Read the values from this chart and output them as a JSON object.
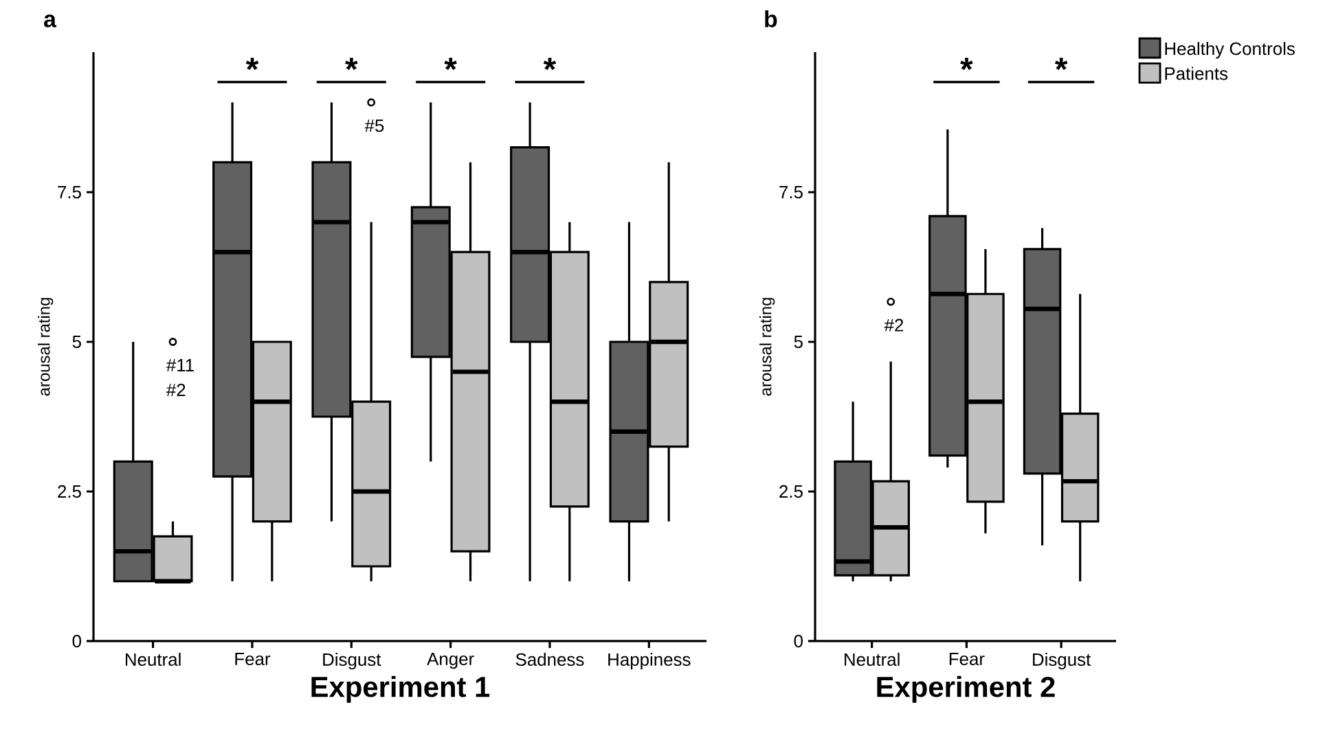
{
  "chart_data": [
    {
      "type": "box",
      "title": "a",
      "xlabel": "Experiment 1",
      "ylabel": "arousal rating",
      "categories": [
        "Neutral",
        "Fear",
        "Disgust",
        "Anger",
        "Sadness",
        "Happiness"
      ],
      "ylim": [
        0,
        9.84
      ],
      "yticks": [
        0,
        2.5,
        5,
        7.5
      ],
      "series": [
        {
          "color": "#616161",
          "boxes": [
            {
              "low": 1,
              "q1": 1,
              "median": 1.5,
              "q3": 3,
              "high": 5
            },
            {
              "low": 1,
              "q1": 2.75,
              "median": 6.5,
              "q3": 8,
              "high": 9
            },
            {
              "low": 2,
              "q1": 3.75,
              "median": 7,
              "q3": 8,
              "high": 9
            },
            {
              "low": 3,
              "q1": 4.75,
              "median": 7,
              "q3": 7.25,
              "high": 9
            },
            {
              "low": 1,
              "q1": 5,
              "median": 6.5,
              "q3": 8.25,
              "high": 9
            },
            {
              "low": 1,
              "q1": 2,
              "median": 3.5,
              "q3": 5,
              "high": 7
            }
          ]
        },
        {
          "color": "#c0c0c1",
          "boxes": [
            {
              "low": 1,
              "q1": 1,
              "median": 1,
              "q3": 1.75,
              "high": 2,
              "outliers": [
                5
              ]
            },
            {
              "low": 1,
              "q1": 2,
              "median": 4,
              "q3": 5,
              "high": 5
            },
            {
              "low": 1,
              "q1": 1.25,
              "median": 2.5,
              "q3": 4,
              "high": 7,
              "outliers": [
                9
              ]
            },
            {
              "low": 1,
              "q1": 1.5,
              "median": 4.5,
              "q3": 6.5,
              "high": 8
            },
            {
              "low": 1,
              "q1": 2.25,
              "median": 4,
              "q3": 6.5,
              "high": 7
            },
            {
              "low": 2,
              "q1": 3.25,
              "median": 5,
              "q3": 6,
              "high": 8
            }
          ]
        }
      ],
      "annotations": [
        "#11",
        "#2",
        "#5",
        "*",
        "*",
        "*",
        "*"
      ]
    },
    {
      "type": "box",
      "title": "b",
      "xlabel": "Experiment 2",
      "ylabel": "arousal rating",
      "categories": [
        "Neutral",
        "Fear",
        "Disgust"
      ],
      "ylim": [
        0,
        9.84
      ],
      "yticks": [
        0,
        2.5,
        5,
        7.5
      ],
      "legend": "top right",
      "series": [
        {
          "name": "Healthy Controls",
          "color": "#616161",
          "boxes": [
            {
              "low": 1,
              "q1": 1.1,
              "median": 1.33,
              "q3": 3,
              "high": 4
            },
            {
              "low": 2.9,
              "q1": 3.1,
              "median": 5.8,
              "q3": 7.1,
              "high": 8.55
            },
            {
              "low": 1.6,
              "q1": 2.8,
              "median": 5.55,
              "q3": 6.55,
              "high": 6.9
            }
          ]
        },
        {
          "name": "Patients",
          "color": "#c0c0c1",
          "boxes": [
            {
              "low": 1,
              "q1": 1.1,
              "median": 1.9,
              "q3": 2.67,
              "high": 4.67,
              "outliers": [
                5.67
              ]
            },
            {
              "low": 1.8,
              "q1": 2.33,
              "median": 4,
              "q3": 5.8,
              "high": 6.55
            },
            {
              "low": 1,
              "q1": 2,
              "median": 2.67,
              "q3": 3.8,
              "high": 5.8
            }
          ]
        }
      ],
      "annotations": [
        "#2",
        "*",
        "*"
      ]
    }
  ]
}
